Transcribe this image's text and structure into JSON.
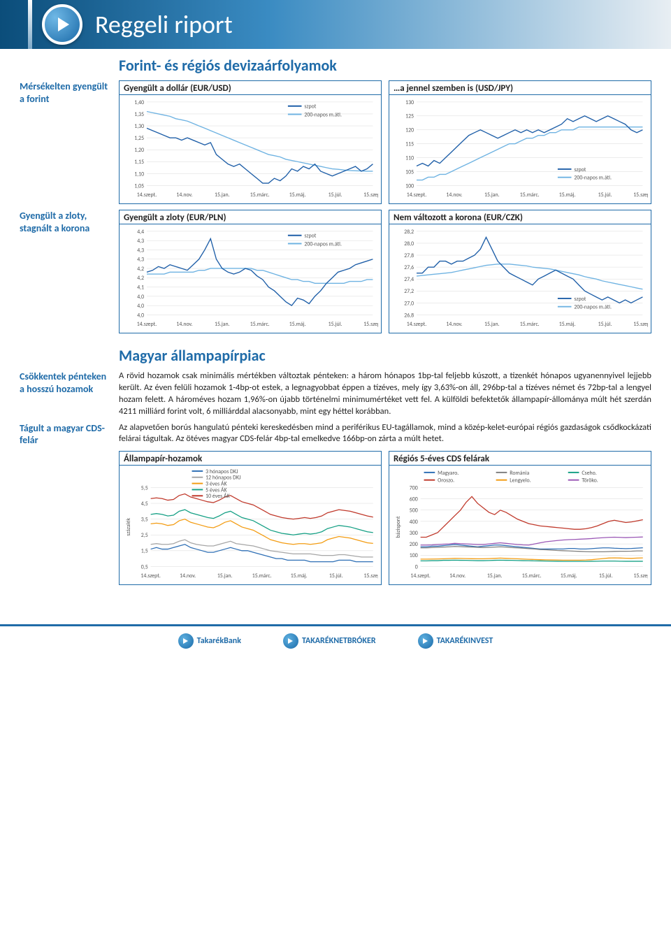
{
  "header": {
    "title": "Reggeli riport"
  },
  "section1": {
    "title": "Forint- és régiós devizaárfolyamok",
    "sidelabel1": "Mérsékelten gyengült a forint",
    "sidelabel2": "Gyengült a zloty, stagnált a korona"
  },
  "section2": {
    "title": "Magyar állampapírpiac",
    "side1": "Csökkentek pénteken a hosszú hozamok",
    "para1": "A rövid hozamok csak minimális mértékben változtak pénteken: a három hónapos 1bp-tal feljebb kúszott, a tizenkét hónapos ugyanennyivel lejjebb került. Az éven felüli hozamok 1-4bp-ot estek, a legnagyobbat éppen a tízéves, mely így 3,63%-on áll, 296bp-tal a tízéves német és 72bp-tal a lengyel hozam felett. A hároméves hozam 1,96%-on újabb történelmi minimumértéket vett fel. A külföldi befektetők állampapír-állománya múlt hét szerdán 4211 milliárd forint volt, 6 milliárddal alacsonyabb, mint egy héttel korábban.",
    "side2": "Tágult a magyar CDS-felár",
    "para2": "Az alapvetően borús hangulatú pénteki kereskedésben mind a periférikus EU-tagállamok, mind a közép-kelet-európai régiós gazdaságok csődkockázati felárai tágultak. Az ötéves magyar CDS-felár 4bp-tal emelkedve 166bp-on zárta a múlt hetet."
  },
  "xticks": [
    "14.szept.",
    "14.nov.",
    "15.jan.",
    "15.márc.",
    "15.máj.",
    "15.júl.",
    "15.szept"
  ],
  "legend": {
    "szpot": "szpot",
    "ma200": "200-napos m.átl."
  },
  "chart_eurusd": {
    "title": "Gyengült a dollár (EUR/USD)",
    "ylim": [
      1.05,
      1.4
    ],
    "yticks": [
      1.05,
      1.1,
      1.15,
      1.2,
      1.25,
      1.3,
      1.35,
      1.4
    ],
    "szpot_color": "#1f5fa8",
    "ma_color": "#6fb3e2",
    "szpot": [
      1.29,
      1.28,
      1.27,
      1.26,
      1.25,
      1.25,
      1.24,
      1.25,
      1.24,
      1.23,
      1.22,
      1.23,
      1.18,
      1.16,
      1.14,
      1.13,
      1.14,
      1.12,
      1.1,
      1.08,
      1.06,
      1.06,
      1.08,
      1.07,
      1.09,
      1.12,
      1.11,
      1.13,
      1.12,
      1.14,
      1.11,
      1.1,
      1.09,
      1.1,
      1.11,
      1.12,
      1.13,
      1.11,
      1.12,
      1.14
    ],
    "ma": [
      1.36,
      1.355,
      1.35,
      1.345,
      1.34,
      1.33,
      1.325,
      1.32,
      1.31,
      1.3,
      1.29,
      1.28,
      1.27,
      1.26,
      1.25,
      1.24,
      1.23,
      1.22,
      1.21,
      1.2,
      1.19,
      1.18,
      1.175,
      1.17,
      1.16,
      1.155,
      1.15,
      1.145,
      1.14,
      1.135,
      1.13,
      1.125,
      1.12,
      1.118,
      1.115,
      1.113,
      1.112,
      1.111,
      1.11,
      1.11
    ]
  },
  "chart_usdjpy": {
    "title": "…a jennel szemben is (USD/JPY)",
    "ylim": [
      100,
      130
    ],
    "yticks": [
      100,
      105,
      110,
      115,
      120,
      125,
      130
    ],
    "szpot_color": "#1f5fa8",
    "ma_color": "#6fb3e2",
    "szpot": [
      107,
      108,
      107,
      109,
      108,
      110,
      112,
      114,
      116,
      118,
      119,
      120,
      119,
      118,
      117,
      118,
      119,
      120,
      119,
      120,
      119,
      120,
      119,
      120,
      121,
      122,
      124,
      123,
      124,
      125,
      124,
      123,
      124,
      125,
      124,
      123,
      122,
      120,
      119,
      120
    ],
    "ma": [
      102,
      102,
      103,
      103,
      104,
      104,
      105,
      106,
      107,
      108,
      109,
      110,
      111,
      112,
      113,
      114,
      115,
      115,
      116,
      117,
      117,
      118,
      118,
      119,
      119,
      120,
      120,
      120,
      121,
      121,
      121,
      121,
      121,
      121,
      121,
      121,
      121,
      121,
      121,
      121
    ]
  },
  "chart_eurpln": {
    "title": "Gyengült a zloty (EUR/PLN)",
    "ylim": [
      3.95,
      4.4
    ],
    "yticks": [
      3.95,
      4.0,
      4.05,
      4.1,
      4.15,
      4.2,
      4.25,
      4.3,
      4.35,
      4.4
    ],
    "szpot_color": "#1f5fa8",
    "ma_color": "#6fb3e2",
    "szpot": [
      4.18,
      4.19,
      4.21,
      4.2,
      4.22,
      4.21,
      4.2,
      4.19,
      4.22,
      4.25,
      4.3,
      4.36,
      4.25,
      4.2,
      4.18,
      4.17,
      4.18,
      4.2,
      4.19,
      4.16,
      4.14,
      4.1,
      4.08,
      4.05,
      4.02,
      4.0,
      4.04,
      4.03,
      4.01,
      4.05,
      4.08,
      4.12,
      4.15,
      4.18,
      4.19,
      4.2,
      4.22,
      4.23,
      4.24,
      4.25
    ],
    "ma": [
      4.17,
      4.17,
      4.17,
      4.17,
      4.18,
      4.18,
      4.18,
      4.18,
      4.18,
      4.19,
      4.19,
      4.2,
      4.2,
      4.2,
      4.2,
      4.2,
      4.2,
      4.2,
      4.2,
      4.19,
      4.19,
      4.18,
      4.17,
      4.16,
      4.15,
      4.14,
      4.14,
      4.13,
      4.13,
      4.12,
      4.12,
      4.12,
      4.12,
      4.12,
      4.12,
      4.13,
      4.13,
      4.13,
      4.14,
      4.14
    ]
  },
  "chart_eurczk": {
    "title": "Nem változott a korona (EUR/CZK)",
    "ylim": [
      26.8,
      28.2
    ],
    "yticks": [
      26.8,
      27.0,
      27.2,
      27.4,
      27.6,
      27.8,
      28.0,
      28.2
    ],
    "szpot_color": "#1f5fa8",
    "ma_color": "#6fb3e2",
    "szpot": [
      27.5,
      27.5,
      27.6,
      27.6,
      27.7,
      27.7,
      27.65,
      27.7,
      27.7,
      27.75,
      27.8,
      27.9,
      28.1,
      27.9,
      27.7,
      27.6,
      27.5,
      27.45,
      27.4,
      27.35,
      27.3,
      27.4,
      27.45,
      27.5,
      27.55,
      27.5,
      27.45,
      27.4,
      27.3,
      27.2,
      27.15,
      27.1,
      27.05,
      27.1,
      27.05,
      27.0,
      27.05,
      27.0,
      27.05,
      27.1
    ],
    "ma": [
      27.45,
      27.46,
      27.47,
      27.48,
      27.49,
      27.5,
      27.51,
      27.53,
      27.55,
      27.57,
      27.59,
      27.61,
      27.63,
      27.64,
      27.65,
      27.65,
      27.65,
      27.64,
      27.63,
      27.62,
      27.6,
      27.59,
      27.58,
      27.57,
      27.55,
      27.53,
      27.51,
      27.49,
      27.47,
      27.44,
      27.42,
      27.4,
      27.37,
      27.35,
      27.33,
      27.31,
      27.29,
      27.27,
      27.25,
      27.23
    ]
  },
  "chart_yields": {
    "title": "Állampapír-hozamok",
    "ylim": [
      0.5,
      5.5
    ],
    "yticks": [
      0.5,
      1.5,
      2.5,
      3.5,
      4.5,
      5.5
    ],
    "ylabel": "százalék",
    "legend": [
      "3 hónapos DKJ",
      "12 hónapos DKJ",
      "3 éves ÁK",
      "5 éves ÁK",
      "10 éves ÁK"
    ],
    "colors": [
      "#2e6fb5",
      "#a6a6a6",
      "#f39c12",
      "#16a085",
      "#c0392b"
    ],
    "series": [
      [
        1.6,
        1.7,
        1.6,
        1.6,
        1.7,
        1.8,
        1.9,
        1.7,
        1.6,
        1.5,
        1.4,
        1.4,
        1.5,
        1.6,
        1.7,
        1.6,
        1.5,
        1.5,
        1.4,
        1.3,
        1.2,
        1.1,
        1.0,
        1.0,
        0.9,
        0.9,
        0.9,
        0.9,
        0.8,
        0.8,
        0.8,
        0.8,
        0.8,
        0.9,
        0.9,
        0.9,
        0.8,
        0.8,
        0.8,
        0.8
      ],
      [
        1.9,
        1.95,
        1.9,
        1.9,
        1.95,
        2.1,
        2.2,
        2.0,
        1.9,
        1.85,
        1.8,
        1.8,
        1.9,
        2.0,
        2.1,
        1.95,
        1.9,
        1.85,
        1.8,
        1.7,
        1.6,
        1.5,
        1.45,
        1.4,
        1.35,
        1.3,
        1.3,
        1.3,
        1.3,
        1.25,
        1.2,
        1.2,
        1.2,
        1.25,
        1.25,
        1.2,
        1.15,
        1.1,
        1.1,
        1.1
      ],
      [
        3.2,
        3.25,
        3.2,
        3.1,
        3.15,
        3.4,
        3.5,
        3.3,
        3.2,
        3.1,
        3.0,
        2.95,
        3.1,
        3.3,
        3.4,
        3.2,
        3.0,
        2.9,
        2.8,
        2.6,
        2.4,
        2.2,
        2.1,
        2.0,
        1.95,
        1.9,
        1.95,
        1.95,
        1.9,
        1.95,
        2.0,
        2.2,
        2.3,
        2.4,
        2.35,
        2.3,
        2.2,
        2.1,
        2.0,
        1.96
      ],
      [
        3.8,
        3.85,
        3.8,
        3.7,
        3.75,
        4.0,
        4.1,
        3.9,
        3.8,
        3.7,
        3.6,
        3.55,
        3.7,
        3.9,
        4.0,
        3.8,
        3.6,
        3.5,
        3.4,
        3.2,
        3.0,
        2.8,
        2.7,
        2.6,
        2.55,
        2.5,
        2.55,
        2.6,
        2.55,
        2.6,
        2.7,
        2.9,
        3.0,
        3.1,
        3.05,
        3.0,
        2.9,
        2.8,
        2.7,
        2.65
      ],
      [
        4.8,
        4.85,
        4.8,
        4.7,
        4.75,
        5.0,
        5.1,
        4.9,
        4.8,
        4.7,
        4.6,
        4.55,
        4.7,
        4.9,
        5.0,
        4.8,
        4.6,
        4.5,
        4.4,
        4.2,
        4.0,
        3.8,
        3.7,
        3.6,
        3.55,
        3.5,
        3.55,
        3.6,
        3.55,
        3.6,
        3.7,
        3.9,
        4.0,
        4.1,
        4.05,
        4.0,
        3.9,
        3.8,
        3.7,
        3.63
      ]
    ]
  },
  "chart_cds": {
    "title": "Régiós 5-éves CDS felárak",
    "ylim": [
      0,
      700
    ],
    "yticks": [
      0,
      100,
      200,
      300,
      400,
      500,
      600,
      700
    ],
    "ylabel": "bázispont",
    "legend_labels": [
      "Magyaro.",
      "Románia",
      "Cseho.",
      "Oroszo.",
      "Lengyelo.",
      "Töröko."
    ],
    "legend_colors": [
      "#2e6fb5",
      "#7f7f7f",
      "#16a085",
      "#c0392b",
      "#f39c12",
      "#9b59b6"
    ],
    "series": [
      [
        175,
        175,
        180,
        180,
        185,
        190,
        195,
        190,
        185,
        180,
        175,
        180,
        185,
        190,
        190,
        185,
        180,
        175,
        170,
        165,
        160,
        155,
        155,
        155,
        155,
        155,
        160,
        160,
        155,
        155,
        158,
        162,
        165,
        165,
        162,
        160,
        158,
        160,
        163,
        166
      ],
      [
        165,
        165,
        168,
        170,
        172,
        175,
        178,
        176,
        174,
        172,
        170,
        168,
        170,
        172,
        175,
        172,
        168,
        165,
        162,
        158,
        155,
        150,
        148,
        145,
        142,
        140,
        138,
        136,
        134,
        132,
        130,
        130,
        130,
        132,
        134,
        135,
        135,
        136,
        138,
        138
      ],
      [
        50,
        50,
        52,
        52,
        55,
        55,
        56,
        55,
        54,
        53,
        52,
        52,
        53,
        55,
        56,
        55,
        54,
        53,
        52,
        51,
        50,
        49,
        48,
        47,
        46,
        45,
        45,
        45,
        45,
        45,
        46,
        47,
        48,
        48,
        48,
        47,
        46,
        46,
        46,
        46
      ],
      [
        260,
        260,
        280,
        300,
        350,
        400,
        450,
        500,
        570,
        620,
        560,
        520,
        480,
        460,
        500,
        480,
        450,
        420,
        400,
        380,
        370,
        360,
        355,
        350,
        345,
        340,
        335,
        330,
        330,
        335,
        345,
        360,
        380,
        400,
        410,
        400,
        390,
        395,
        405,
        415
      ],
      [
        65,
        65,
        66,
        67,
        68,
        70,
        72,
        71,
        70,
        69,
        68,
        68,
        70,
        72,
        74,
        72,
        70,
        68,
        66,
        64,
        62,
        60,
        59,
        58,
        57,
        56,
        56,
        56,
        56,
        57,
        60,
        65,
        70,
        75,
        76,
        75,
        73,
        72,
        74,
        76
      ],
      [
        190,
        190,
        192,
        195,
        198,
        200,
        205,
        202,
        200,
        198,
        195,
        195,
        200,
        205,
        210,
        205,
        200,
        195,
        192,
        190,
        200,
        210,
        220,
        225,
        230,
        235,
        238,
        240,
        242,
        245,
        248,
        252,
        255,
        258,
        260,
        258,
        256,
        258,
        260,
        262
      ]
    ]
  },
  "footer": {
    "b1": "TakarékBank",
    "b2": "TAKARÉKNETBRÓKER",
    "b3": "TAKARÉKINVEST"
  }
}
